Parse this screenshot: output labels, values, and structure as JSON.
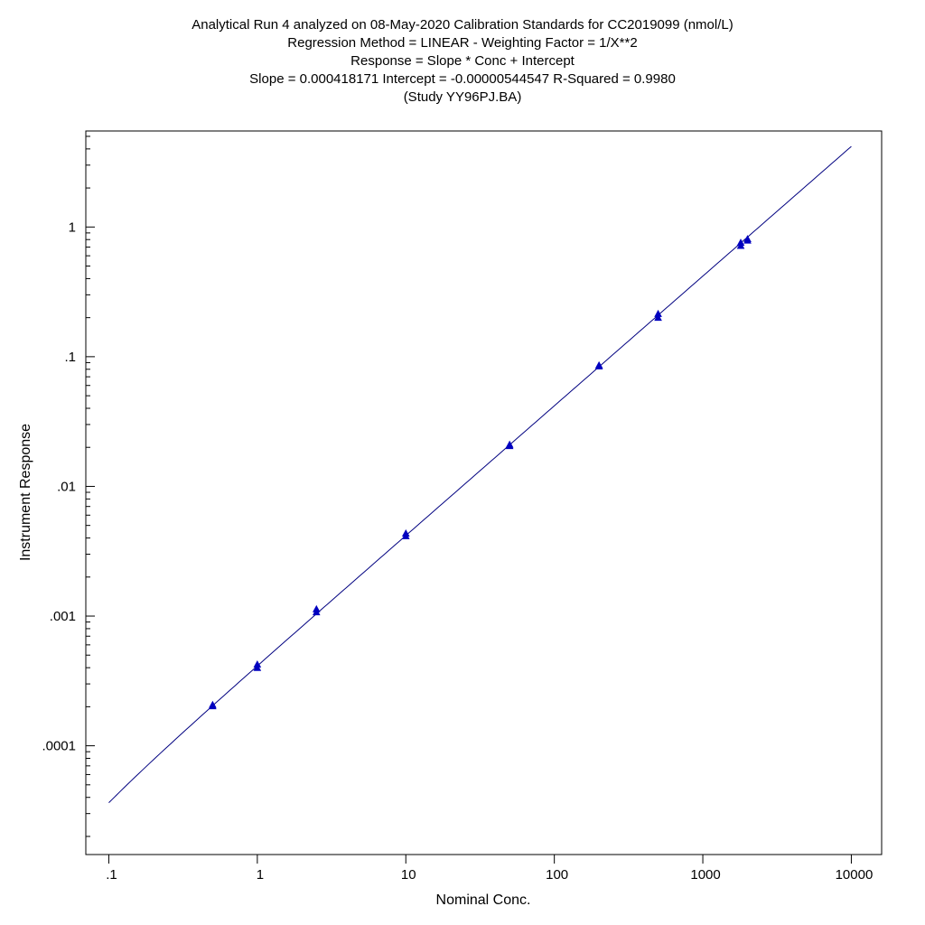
{
  "chart_data": {
    "type": "scatter",
    "title_lines": [
      "Analytical Run 4 analyzed on 08-May-2020 Calibration Standards for CC2019099 (nmol/L)",
      "Regression Method = LINEAR - Weighting Factor = 1/X**2",
      "Response = Slope * Conc + Intercept",
      "Slope = 0.000418171 Intercept = -0.00000544547 R-Squared = 0.9980",
      "(Study YY96PJ.BA)"
    ],
    "xlabel": "Nominal Conc.",
    "ylabel": "Instrument Response",
    "x_scale": "log",
    "y_scale": "log",
    "xlim": [
      0.07,
      16000
    ],
    "ylim": [
      1.45e-05,
      5.5
    ],
    "x_ticks": [
      {
        "value": 0.1,
        "label": ".1"
      },
      {
        "value": 1,
        "label": "1"
      },
      {
        "value": 10,
        "label": "10"
      },
      {
        "value": 100,
        "label": "100"
      },
      {
        "value": 1000,
        "label": "1000"
      },
      {
        "value": 10000,
        "label": "10000"
      }
    ],
    "y_ticks": [
      {
        "value": 0.0001,
        "label": ".0001"
      },
      {
        "value": 0.001,
        "label": ".001"
      },
      {
        "value": 0.01,
        "label": ".01"
      },
      {
        "value": 0.1,
        "label": ".1"
      },
      {
        "value": 1,
        "label": "1"
      }
    ],
    "fit_line": {
      "slope": 0.000418171,
      "intercept": -5.44547e-06,
      "x_range": [
        0.1,
        10000
      ],
      "color": "#000080"
    },
    "series": [
      {
        "marker": "triangle",
        "color": "#0000c0",
        "points": [
          {
            "x": 0.5,
            "y": 0.0002
          },
          {
            "x": 0.5,
            "y": 0.000205
          },
          {
            "x": 1,
            "y": 0.000395
          },
          {
            "x": 1,
            "y": 0.00042
          },
          {
            "x": 2.5,
            "y": 0.00106
          },
          {
            "x": 2.5,
            "y": 0.00112
          },
          {
            "x": 10,
            "y": 0.0041
          },
          {
            "x": 10,
            "y": 0.0043
          },
          {
            "x": 50,
            "y": 0.0203
          },
          {
            "x": 50,
            "y": 0.0208
          },
          {
            "x": 200,
            "y": 0.0835
          },
          {
            "x": 200,
            "y": 0.085
          },
          {
            "x": 500,
            "y": 0.198
          },
          {
            "x": 500,
            "y": 0.212
          },
          {
            "x": 1800,
            "y": 0.71
          },
          {
            "x": 1800,
            "y": 0.75
          },
          {
            "x": 2000,
            "y": 0.8
          },
          {
            "x": 2000,
            "y": 0.78
          }
        ]
      }
    ],
    "grid": false,
    "legend": "none"
  }
}
